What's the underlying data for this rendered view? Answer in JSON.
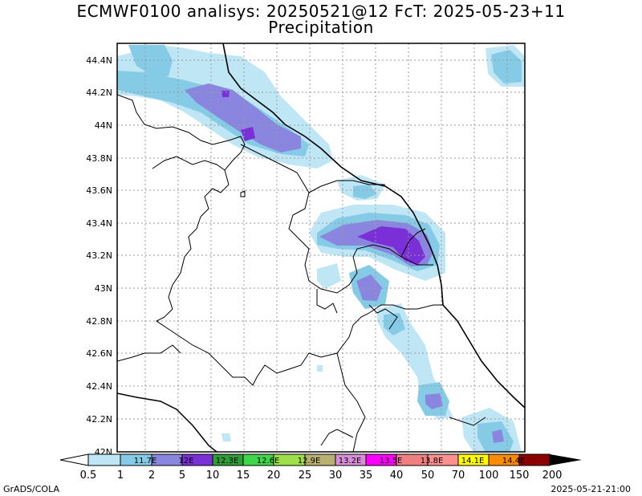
{
  "title_line1": "ECMWF0100 analisys: 20250521@12 FcT: 2025-05-23+11",
  "title_line2": "Precipitation",
  "lat_labels": [
    "44.4N",
    "44.2N",
    "44N",
    "43.8N",
    "43.6N",
    "43.4N",
    "43.2N",
    "43N",
    "42.8N",
    "42.6N",
    "42.4N",
    "42.2N",
    "42N"
  ],
  "lon_labels": [
    "11.7E",
    "12E",
    "12.3E",
    "12.6E",
    "12.9E",
    "13.2E",
    "13.5E",
    "13.8E",
    "14.1E",
    "14.4E"
  ],
  "colorbar": {
    "values": [
      "0.5",
      "1",
      "2",
      "5",
      "10",
      "15",
      "20",
      "25",
      "30",
      "35",
      "40",
      "50",
      "70",
      "100",
      "150",
      "200"
    ],
    "colors": [
      "#ffffff",
      "#bfe6f5",
      "#85cbe6",
      "#8a86e0",
      "#7b2fd6",
      "#2e9e3a",
      "#40d64a",
      "#9ee04a",
      "#b8b070",
      "#d88ed8",
      "#ff00ff",
      "#f08080",
      "#ff9090",
      "#ffff00",
      "#ff8c00",
      "#ff2000",
      "#8b0000"
    ]
  },
  "footer_left": "GrADS/COLA",
  "footer_right": "2025-05-21-21:00"
}
